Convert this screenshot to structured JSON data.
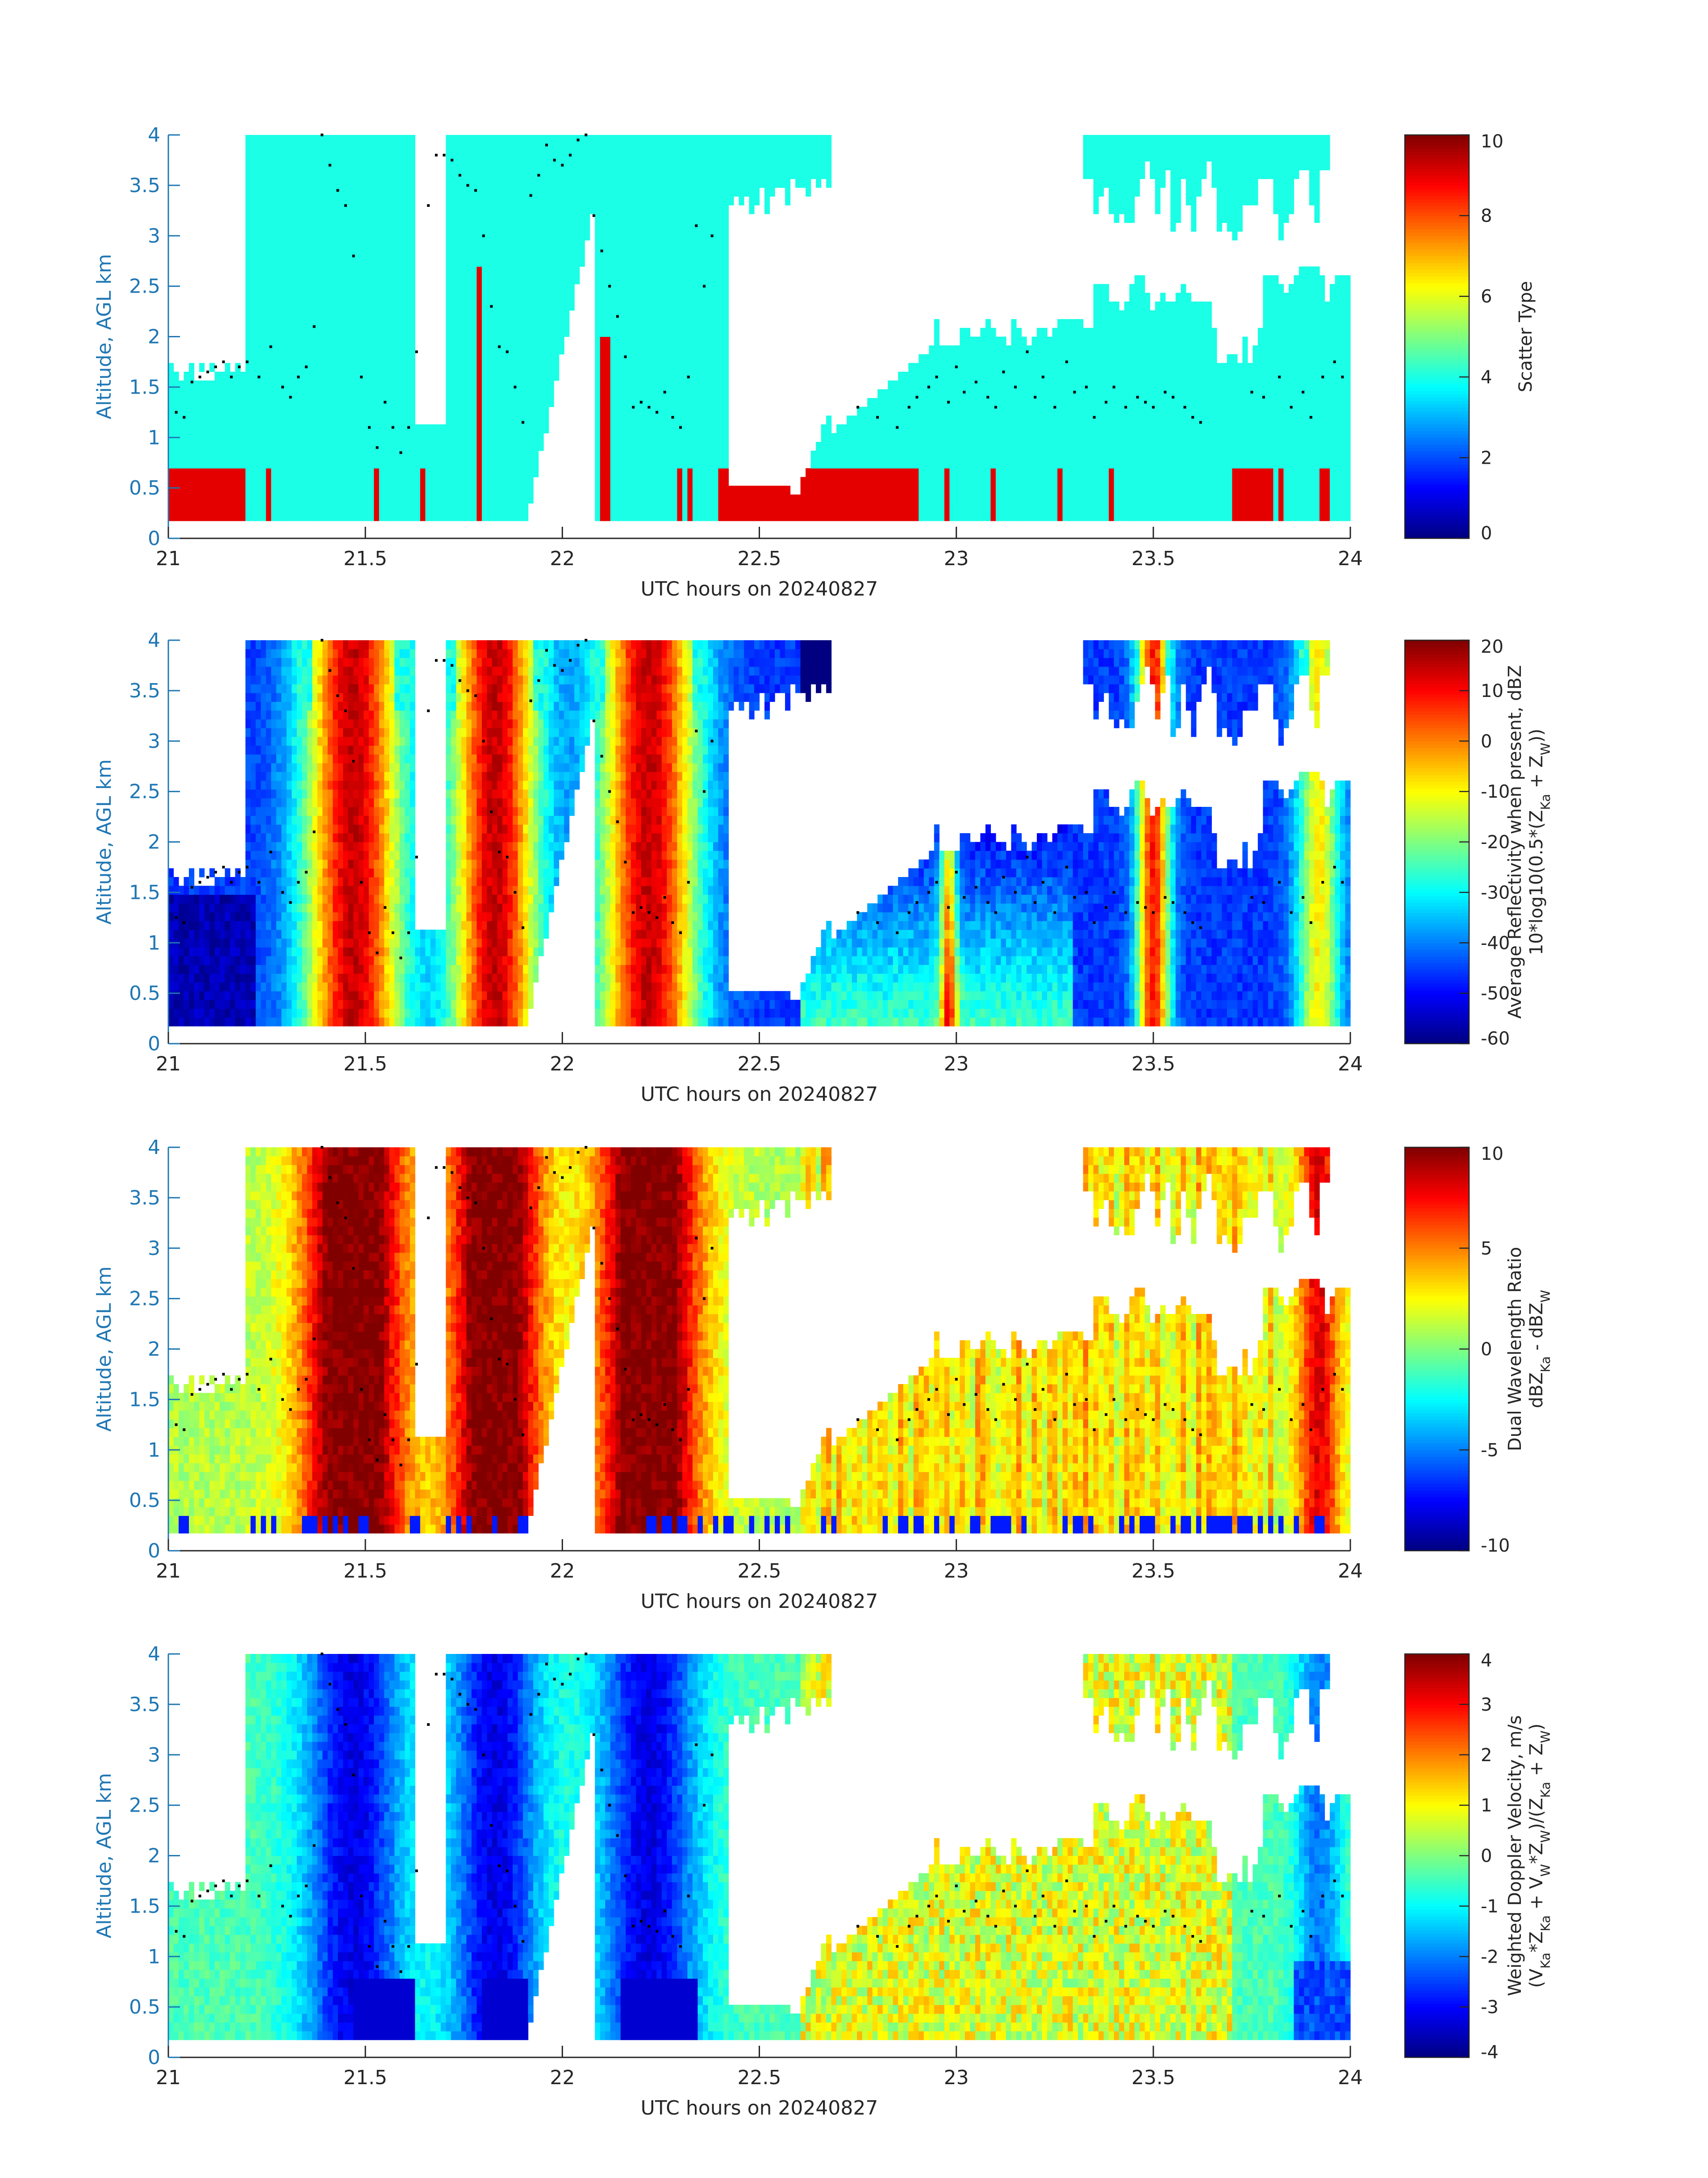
{
  "figure": {
    "date_label": "UTC hours on 20240827",
    "colors": {
      "axis_text": "#1f77b4",
      "tick_text": "#262626",
      "axis_line": "#262626",
      "background": "#ffffff"
    }
  },
  "chart_data": [
    {
      "type": "heatmap",
      "title": "",
      "xlabel": "UTC hours on 20240827",
      "ylabel": "Altitude, AGL km",
      "xlim": [
        21,
        24
      ],
      "ylim": [
        0,
        4
      ],
      "xticks": [
        "21",
        "21.5",
        "22",
        "22.5",
        "23",
        "23.5",
        "24"
      ],
      "yticks": [
        "0",
        "0.5",
        "1",
        "1.5",
        "2",
        "2.5",
        "3",
        "3.5",
        "4"
      ],
      "colorbar": {
        "label_lines": [
          "Scatter Type"
        ],
        "range": [
          0,
          10
        ],
        "ticks": [
          "0",
          "2",
          "4",
          "6",
          "8",
          "10"
        ],
        "colormap": "jet"
      },
      "field": "scatter_type",
      "approx_values": {
        "main_scatter_type": 4,
        "secondary_scatter_type": 9
      }
    },
    {
      "type": "heatmap",
      "title": "",
      "xlabel": "UTC hours on 20240827",
      "ylabel": "Altitude, AGL km",
      "xlim": [
        21,
        24
      ],
      "ylim": [
        0,
        4
      ],
      "xticks": [
        "21",
        "21.5",
        "22",
        "22.5",
        "23",
        "23.5",
        "24"
      ],
      "yticks": [
        "0",
        "0.5",
        "1",
        "1.5",
        "2",
        "2.5",
        "3",
        "3.5",
        "4"
      ],
      "colorbar": {
        "label_lines": [
          "Average Reflectivity when present, dBZ",
          "10*log10(0.5*(Z_Ka + Z_W))"
        ],
        "range": [
          -60,
          20
        ],
        "ticks": [
          "-60",
          "-50",
          "-40",
          "-30",
          "-20",
          "-10",
          "0",
          "10",
          "20"
        ],
        "colormap": "jet"
      },
      "field": "reflectivity"
    },
    {
      "type": "heatmap",
      "title": "",
      "xlabel": "UTC hours on 20240827",
      "ylabel": "Altitude, AGL km",
      "xlim": [
        21,
        24
      ],
      "ylim": [
        0,
        4
      ],
      "xticks": [
        "21",
        "21.5",
        "22",
        "22.5",
        "23",
        "23.5",
        "24"
      ],
      "yticks": [
        "0",
        "0.5",
        "1",
        "1.5",
        "2",
        "2.5",
        "3",
        "3.5",
        "4"
      ],
      "colorbar": {
        "label_lines": [
          "Dual Wavelength Ratio",
          "dBZ_Ka - dBZ_W"
        ],
        "range": [
          -10,
          10
        ],
        "ticks": [
          "-10",
          "-5",
          "0",
          "5",
          "10"
        ],
        "colormap": "jet"
      },
      "field": "dwr"
    },
    {
      "type": "heatmap",
      "title": "",
      "xlabel": "UTC hours on 20240827",
      "ylabel": "Altitude, AGL km",
      "xlim": [
        21,
        24
      ],
      "ylim": [
        0,
        4
      ],
      "xticks": [
        "21",
        "21.5",
        "22",
        "22.5",
        "23",
        "23.5",
        "24"
      ],
      "yticks": [
        "0",
        "0.5",
        "1",
        "1.5",
        "2",
        "2.5",
        "3",
        "3.5",
        "4"
      ],
      "colorbar": {
        "label_lines": [
          "Weighted Doppler Velocity, m/s",
          "(V_Ka*Z_Ka + V_W*Z_W)/(Z_Ka + Z_W)"
        ],
        "range": [
          -4,
          4
        ],
        "ticks": [
          "-4",
          "-3",
          "-2",
          "-1",
          "0",
          "1",
          "2",
          "3",
          "4"
        ],
        "colormap": "jet"
      },
      "field": "velocity"
    }
  ],
  "shared": {
    "cloud_base_dots": [
      [
        21.02,
        1.25
      ],
      [
        21.04,
        1.2
      ],
      [
        21.06,
        1.55
      ],
      [
        21.08,
        1.6
      ],
      [
        21.1,
        1.65
      ],
      [
        21.12,
        1.7
      ],
      [
        21.14,
        1.75
      ],
      [
        21.16,
        1.6
      ],
      [
        21.18,
        1.7
      ],
      [
        21.2,
        1.75
      ],
      [
        21.23,
        1.6
      ],
      [
        21.26,
        1.9
      ],
      [
        21.29,
        1.5
      ],
      [
        21.31,
        1.4
      ],
      [
        21.33,
        1.6
      ],
      [
        21.35,
        1.7
      ],
      [
        21.37,
        2.1
      ],
      [
        21.39,
        4.0
      ],
      [
        21.41,
        3.7
      ],
      [
        21.43,
        3.45
      ],
      [
        21.45,
        3.3
      ],
      [
        21.47,
        2.8
      ],
      [
        21.49,
        1.6
      ],
      [
        21.51,
        1.1
      ],
      [
        21.53,
        0.9
      ],
      [
        21.55,
        1.35
      ],
      [
        21.57,
        1.1
      ],
      [
        21.59,
        0.85
      ],
      [
        21.61,
        1.1
      ],
      [
        21.63,
        1.85
      ],
      [
        21.66,
        3.3
      ],
      [
        21.68,
        3.8
      ],
      [
        21.7,
        3.8
      ],
      [
        21.72,
        3.75
      ],
      [
        21.74,
        3.6
      ],
      [
        21.76,
        3.5
      ],
      [
        21.78,
        3.45
      ],
      [
        21.8,
        3.0
      ],
      [
        21.82,
        2.3
      ],
      [
        21.84,
        1.9
      ],
      [
        21.86,
        1.85
      ],
      [
        21.88,
        1.5
      ],
      [
        21.9,
        1.15
      ],
      [
        21.92,
        3.4
      ],
      [
        21.94,
        3.6
      ],
      [
        21.96,
        3.9
      ],
      [
        21.98,
        3.75
      ],
      [
        22.0,
        3.7
      ],
      [
        22.02,
        3.8
      ],
      [
        22.04,
        3.95
      ],
      [
        22.06,
        4.0
      ],
      [
        22.08,
        3.2
      ],
      [
        22.1,
        2.85
      ],
      [
        22.12,
        2.5
      ],
      [
        22.14,
        2.2
      ],
      [
        22.16,
        1.8
      ],
      [
        22.18,
        1.3
      ],
      [
        22.2,
        1.35
      ],
      [
        22.22,
        1.3
      ],
      [
        22.24,
        1.25
      ],
      [
        22.26,
        1.45
      ],
      [
        22.28,
        1.2
      ],
      [
        22.3,
        1.1
      ],
      [
        22.32,
        1.6
      ],
      [
        22.34,
        3.1
      ],
      [
        22.36,
        2.5
      ],
      [
        22.38,
        3.0
      ],
      [
        22.75,
        1.3
      ],
      [
        22.8,
        1.2
      ],
      [
        22.85,
        1.1
      ],
      [
        22.88,
        1.3
      ],
      [
        22.9,
        1.4
      ],
      [
        22.93,
        1.5
      ],
      [
        22.95,
        1.6
      ],
      [
        22.98,
        1.35
      ],
      [
        23.0,
        1.7
      ],
      [
        23.02,
        1.45
      ],
      [
        23.05,
        1.55
      ],
      [
        23.08,
        1.4
      ],
      [
        23.1,
        1.3
      ],
      [
        23.12,
        1.65
      ],
      [
        23.15,
        1.5
      ],
      [
        23.18,
        1.85
      ],
      [
        23.2,
        1.4
      ],
      [
        23.22,
        1.6
      ],
      [
        23.25,
        1.3
      ],
      [
        23.28,
        1.75
      ],
      [
        23.3,
        1.45
      ],
      [
        23.33,
        1.5
      ],
      [
        23.35,
        1.2
      ],
      [
        23.38,
        1.35
      ],
      [
        23.4,
        1.5
      ],
      [
        23.43,
        1.3
      ],
      [
        23.46,
        1.4
      ],
      [
        23.48,
        1.35
      ],
      [
        23.5,
        1.3
      ],
      [
        23.53,
        1.45
      ],
      [
        23.55,
        1.4
      ],
      [
        23.58,
        1.3
      ],
      [
        23.6,
        1.2
      ],
      [
        23.62,
        1.15
      ],
      [
        23.75,
        1.45
      ],
      [
        23.78,
        1.4
      ],
      [
        23.82,
        1.6
      ],
      [
        23.85,
        1.3
      ],
      [
        23.88,
        1.45
      ],
      [
        23.9,
        1.2
      ],
      [
        23.93,
        1.6
      ],
      [
        23.96,
        1.75
      ],
      [
        23.98,
        1.6
      ]
    ]
  }
}
